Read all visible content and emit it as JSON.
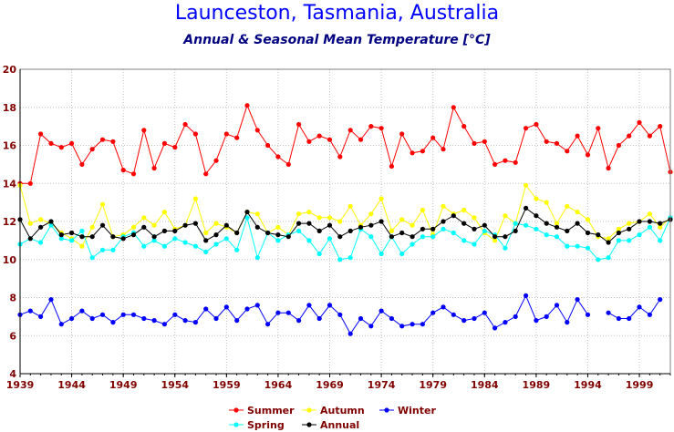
{
  "chart_data": {
    "type": "line",
    "title": "Launceston, Tasmania, Australia",
    "subtitle": "Annual & Seasonal Mean Temperature [°C]",
    "xlabel": "",
    "ylabel": "",
    "xlim": [
      1939,
      2002
    ],
    "ylim": [
      4,
      20
    ],
    "yticks": [
      4,
      6,
      8,
      10,
      12,
      14,
      16,
      18,
      20
    ],
    "xticks": [
      1939,
      1944,
      1949,
      1954,
      1959,
      1964,
      1969,
      1974,
      1979,
      1984,
      1989,
      1994,
      1999
    ],
    "grid": true,
    "legend_position": "bottom-center",
    "x": [
      1939,
      1940,
      1941,
      1942,
      1943,
      1944,
      1945,
      1946,
      1947,
      1948,
      1949,
      1950,
      1951,
      1952,
      1953,
      1954,
      1955,
      1956,
      1957,
      1958,
      1959,
      1960,
      1961,
      1962,
      1963,
      1964,
      1965,
      1966,
      1967,
      1968,
      1969,
      1970,
      1971,
      1972,
      1973,
      1974,
      1975,
      1976,
      1977,
      1978,
      1979,
      1980,
      1981,
      1982,
      1983,
      1984,
      1985,
      1986,
      1987,
      1988,
      1989,
      1990,
      1991,
      1992,
      1993,
      1994,
      1995,
      1996,
      1997,
      1998,
      1999,
      2000,
      2001,
      2002
    ],
    "series": [
      {
        "name": "Summer",
        "color": "#ff0000",
        "values": [
          14.0,
          14.0,
          16.6,
          16.1,
          15.9,
          16.1,
          15.0,
          15.8,
          16.3,
          16.2,
          14.7,
          14.5,
          16.8,
          14.8,
          16.1,
          15.9,
          17.1,
          16.6,
          14.5,
          15.2,
          16.6,
          16.4,
          18.1,
          16.8,
          16.0,
          15.4,
          15.0,
          17.1,
          16.2,
          16.5,
          16.3,
          15.4,
          16.8,
          16.3,
          17.0,
          16.9,
          14.9,
          16.6,
          15.6,
          15.7,
          16.4,
          15.8,
          18.0,
          17.0,
          16.1,
          16.2,
          15.0,
          15.2,
          15.1,
          16.9,
          17.1,
          16.2,
          16.1,
          15.7,
          16.5,
          15.5,
          16.9,
          14.8,
          16.0,
          16.5,
          17.2,
          16.5,
          17.0,
          14.6
        ]
      },
      {
        "name": "Autumn",
        "color": "#ffff00",
        "values": [
          13.9,
          11.9,
          12.1,
          11.9,
          11.4,
          11.1,
          10.7,
          11.7,
          12.9,
          11.2,
          11.3,
          11.7,
          12.2,
          11.8,
          12.5,
          11.6,
          11.8,
          13.2,
          11.4,
          11.9,
          11.7,
          11.4,
          12.5,
          12.4,
          11.4,
          11.7,
          11.3,
          12.4,
          12.5,
          12.2,
          12.2,
          12.0,
          12.8,
          11.8,
          12.4,
          13.2,
          11.5,
          12.1,
          11.8,
          12.6,
          11.3,
          12.8,
          12.4,
          12.6,
          12.2,
          11.4,
          11.0,
          12.3,
          11.9,
          13.9,
          13.2,
          13.0,
          11.9,
          12.8,
          12.5,
          12.1,
          11.2,
          11.1,
          11.6,
          11.9,
          12.0,
          12.4,
          11.7,
          12.2
        ]
      },
      {
        "name": "Winter",
        "color": "#0000ff",
        "values": [
          7.1,
          7.3,
          7.0,
          7.9,
          6.6,
          6.9,
          7.3,
          6.9,
          7.1,
          6.7,
          7.1,
          7.1,
          6.9,
          6.8,
          6.6,
          7.1,
          6.8,
          6.7,
          7.4,
          6.9,
          7.5,
          6.8,
          7.4,
          7.6,
          6.6,
          7.2,
          7.2,
          6.8,
          7.6,
          6.9,
          7.6,
          7.1,
          6.1,
          6.9,
          6.5,
          7.3,
          6.9,
          6.5,
          6.6,
          6.6,
          7.2,
          7.5,
          7.1,
          6.8,
          6.9,
          7.2,
          6.4,
          6.7,
          7.0,
          8.1,
          6.8,
          7.0,
          7.6,
          6.7,
          7.9,
          7.1,
          null,
          7.2,
          6.9,
          6.9,
          7.5,
          7.1,
          7.9,
          null
        ]
      },
      {
        "name": "Spring",
        "color": "#00ffff",
        "values": [
          10.8,
          11.1,
          10.9,
          11.8,
          11.1,
          11.0,
          11.5,
          10.1,
          10.5,
          10.5,
          11.2,
          11.4,
          10.7,
          11.0,
          10.7,
          11.1,
          10.9,
          10.7,
          10.4,
          10.8,
          11.1,
          10.5,
          12.2,
          10.1,
          11.4,
          11.0,
          11.3,
          11.5,
          11.0,
          10.3,
          11.1,
          10.0,
          10.1,
          11.6,
          11.2,
          10.3,
          11.2,
          10.3,
          10.8,
          11.2,
          11.2,
          11.6,
          11.4,
          11.0,
          10.8,
          11.5,
          11.3,
          10.6,
          11.9,
          11.8,
          11.6,
          11.3,
          11.2,
          10.7,
          10.7,
          10.6,
          10.0,
          10.1,
          11.0,
          11.0,
          11.3,
          11.7,
          11.0,
          12.2
        ]
      },
      {
        "name": "Annual",
        "color": "#000000",
        "values": [
          12.1,
          11.1,
          11.7,
          12.0,
          11.3,
          11.4,
          11.2,
          11.2,
          11.8,
          11.2,
          11.1,
          11.3,
          11.7,
          11.2,
          11.5,
          11.5,
          11.8,
          11.9,
          11.0,
          11.3,
          11.8,
          11.4,
          12.5,
          11.7,
          11.4,
          11.3,
          11.2,
          11.9,
          11.9,
          11.5,
          11.8,
          11.2,
          11.5,
          11.7,
          11.8,
          12.0,
          11.2,
          11.4,
          11.2,
          11.6,
          11.6,
          12.0,
          12.3,
          11.9,
          11.6,
          11.8,
          11.2,
          11.2,
          11.5,
          12.7,
          12.3,
          11.9,
          11.7,
          11.5,
          11.9,
          11.4,
          11.3,
          10.9,
          11.4,
          11.6,
          12.0,
          12.0,
          11.9,
          12.1
        ]
      }
    ]
  }
}
